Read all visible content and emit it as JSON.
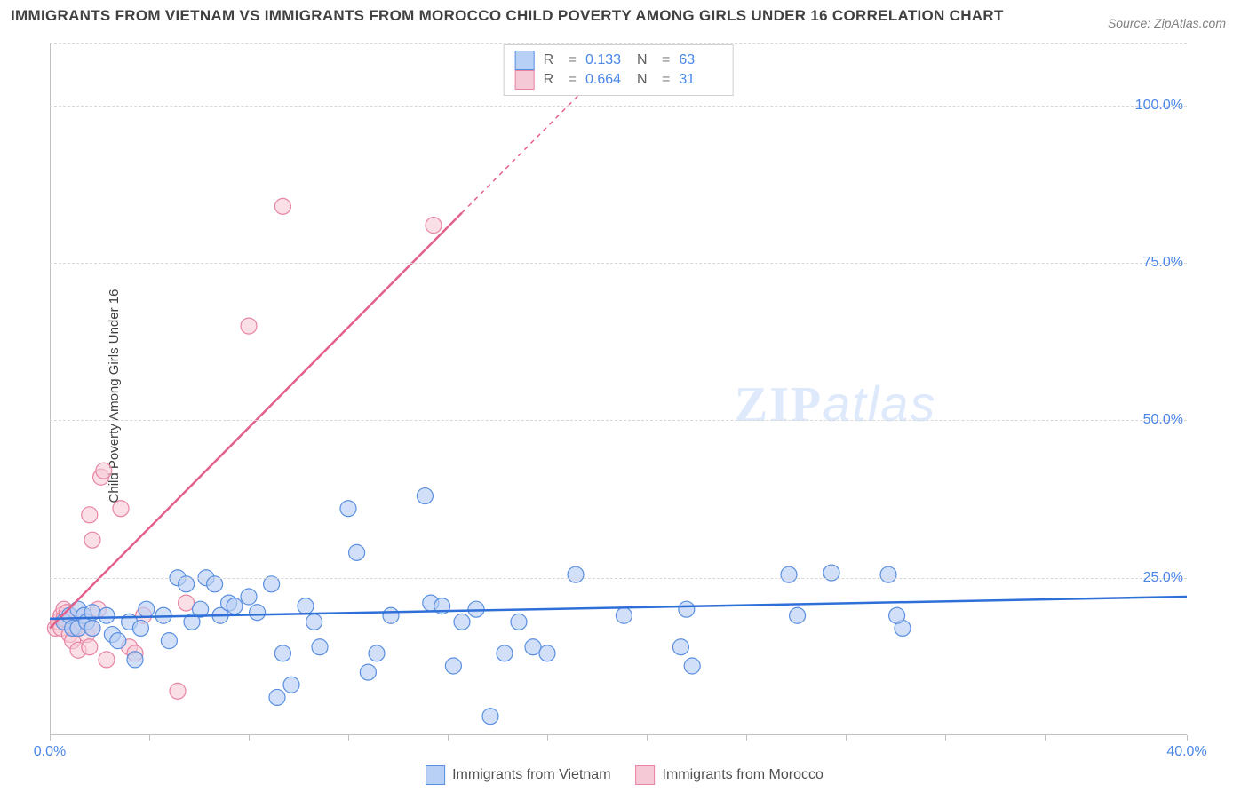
{
  "title": "IMMIGRANTS FROM VIETNAM VS IMMIGRANTS FROM MOROCCO CHILD POVERTY AMONG GIRLS UNDER 16 CORRELATION CHART",
  "source_label": "Source: ZipAtlas.com",
  "y_axis_label": "Child Poverty Among Girls Under 16",
  "watermark": {
    "part1": "ZIP",
    "part2": "atlas"
  },
  "chart": {
    "type": "scatter",
    "background_color": "#ffffff",
    "grid_color": "#d8d8d8",
    "axis_color": "#c0c0c0",
    "text_color": "#404040",
    "value_color": "#4a86e8",
    "xlim": [
      0,
      40
    ],
    "ylim": [
      0,
      110
    ],
    "x_ticks": [
      0,
      3.5,
      7,
      10.5,
      14,
      17.5,
      21,
      24.5,
      28,
      31.5,
      35,
      40
    ],
    "x_tick_labels": {
      "0": "0.0%",
      "40": "40.0%"
    },
    "y_ticks": [
      25,
      50,
      75,
      100
    ],
    "y_tick_labels": {
      "25": "25.0%",
      "50": "50.0%",
      "75": "75.0%",
      "100": "100.0%"
    },
    "series": [
      {
        "key": "vietnam",
        "label": "Immigrants from Vietnam",
        "fill_color": "#b8d0f5",
        "stroke_color": "#5a8fe0",
        "line_color": "#2f6fd8",
        "marker_radius": 9,
        "marker_opacity": 0.65,
        "R": "0.133",
        "N": "63",
        "trend": {
          "x1": 0,
          "y1": 18.5,
          "x2": 40,
          "y2": 22.0,
          "dashed_after_x": null
        },
        "points": [
          [
            0.5,
            18
          ],
          [
            0.7,
            19
          ],
          [
            0.8,
            17
          ],
          [
            1.0,
            20
          ],
          [
            1.0,
            17
          ],
          [
            1.2,
            19
          ],
          [
            1.3,
            18
          ],
          [
            1.5,
            17
          ],
          [
            1.5,
            19.5
          ],
          [
            2.0,
            19
          ],
          [
            2.2,
            16
          ],
          [
            2.4,
            15
          ],
          [
            2.8,
            18
          ],
          [
            3.0,
            12
          ],
          [
            3.2,
            17
          ],
          [
            3.4,
            20
          ],
          [
            4.0,
            19
          ],
          [
            4.2,
            15
          ],
          [
            4.5,
            25
          ],
          [
            4.8,
            24
          ],
          [
            5.0,
            18
          ],
          [
            5.3,
            20
          ],
          [
            5.5,
            25
          ],
          [
            5.8,
            24
          ],
          [
            6.0,
            19
          ],
          [
            6.3,
            21
          ],
          [
            6.5,
            20.5
          ],
          [
            7.0,
            22
          ],
          [
            7.3,
            19.5
          ],
          [
            7.8,
            24
          ],
          [
            8.0,
            6
          ],
          [
            8.2,
            13
          ],
          [
            8.5,
            8
          ],
          [
            9.0,
            20.5
          ],
          [
            9.3,
            18
          ],
          [
            9.5,
            14
          ],
          [
            10.5,
            36
          ],
          [
            10.8,
            29
          ],
          [
            11.2,
            10
          ],
          [
            11.5,
            13
          ],
          [
            12.0,
            19
          ],
          [
            13.2,
            38
          ],
          [
            13.4,
            21
          ],
          [
            13.8,
            20.5
          ],
          [
            14.2,
            11
          ],
          [
            14.5,
            18
          ],
          [
            15.0,
            20
          ],
          [
            15.5,
            3
          ],
          [
            16.0,
            13
          ],
          [
            16.5,
            18
          ],
          [
            17.0,
            14
          ],
          [
            17.5,
            13
          ],
          [
            18.5,
            25.5
          ],
          [
            20.2,
            19
          ],
          [
            22.2,
            14
          ],
          [
            22.4,
            20
          ],
          [
            22.6,
            11
          ],
          [
            26.0,
            25.5
          ],
          [
            26.3,
            19
          ],
          [
            27.5,
            25.8
          ],
          [
            29.5,
            25.5
          ],
          [
            30.0,
            17
          ],
          [
            29.8,
            19
          ]
        ]
      },
      {
        "key": "morocco",
        "label": "Immigrants from Morocco",
        "fill_color": "#f6c9d6",
        "stroke_color": "#e884a3",
        "line_color": "#e3608a",
        "marker_radius": 9,
        "marker_opacity": 0.6,
        "R": "0.664",
        "N": "31",
        "trend": {
          "x1": 0,
          "y1": 17,
          "x2": 20,
          "y2": 108,
          "dashed_after_x": 14.5
        },
        "points": [
          [
            0.2,
            17
          ],
          [
            0.3,
            18
          ],
          [
            0.4,
            19
          ],
          [
            0.4,
            17
          ],
          [
            0.5,
            20
          ],
          [
            0.5,
            18.5
          ],
          [
            0.6,
            19.5
          ],
          [
            0.7,
            16
          ],
          [
            0.8,
            15
          ],
          [
            0.9,
            17
          ],
          [
            1.0,
            13.5
          ],
          [
            1.1,
            18
          ],
          [
            1.2,
            19
          ],
          [
            1.3,
            16
          ],
          [
            1.4,
            14
          ],
          [
            1.5,
            17
          ],
          [
            1.7,
            20
          ],
          [
            1.8,
            41
          ],
          [
            1.9,
            42
          ],
          [
            2.0,
            12
          ],
          [
            1.4,
            35
          ],
          [
            1.5,
            31
          ],
          [
            2.5,
            36
          ],
          [
            2.8,
            14
          ],
          [
            3.0,
            13
          ],
          [
            3.3,
            19
          ],
          [
            4.5,
            7
          ],
          [
            4.8,
            21
          ],
          [
            7.0,
            65
          ],
          [
            8.2,
            84
          ],
          [
            13.5,
            81
          ]
        ]
      }
    ]
  },
  "legend_stats_labels": {
    "R": "R",
    "N": "N",
    "eq": "="
  }
}
